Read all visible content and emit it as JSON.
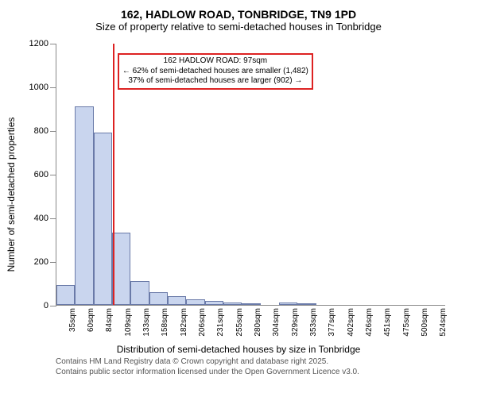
{
  "chart": {
    "type": "bar",
    "title_line1": "162, HADLOW ROAD, TONBRIDGE, TN9 1PD",
    "title_line2": "Size of property relative to semi-detached houses in Tonbridge",
    "y_label": "Number of semi-detached properties",
    "x_label": "Distribution of semi-detached houses by size in Tonbridge",
    "ylim": [
      0,
      1200
    ],
    "ytick_step": 200,
    "bar_fill": "#c9d5ee",
    "bar_border": "#6a7aa8",
    "background": "#ffffff",
    "marker_color": "#d22",
    "marker_x_sqm": 97,
    "callout": {
      "line1": "162 HADLOW ROAD: 97sqm",
      "line2": "← 62% of semi-detached houses are smaller (1,482)",
      "line3": "37% of semi-detached houses are larger (902) →"
    },
    "x_min": 35,
    "x_max": 524,
    "bars": [
      {
        "x": 35,
        "label": "35sqm",
        "value": 90
      },
      {
        "x": 60,
        "label": "60sqm",
        "value": 910
      },
      {
        "x": 84,
        "label": "84sqm",
        "value": 790
      },
      {
        "x": 109,
        "label": "109sqm",
        "value": 330
      },
      {
        "x": 133,
        "label": "133sqm",
        "value": 110
      },
      {
        "x": 158,
        "label": "158sqm",
        "value": 60
      },
      {
        "x": 182,
        "label": "182sqm",
        "value": 40
      },
      {
        "x": 206,
        "label": "206sqm",
        "value": 25
      },
      {
        "x": 231,
        "label": "231sqm",
        "value": 20
      },
      {
        "x": 255,
        "label": "255sqm",
        "value": 10
      },
      {
        "x": 280,
        "label": "280sqm",
        "value": 8
      },
      {
        "x": 304,
        "label": "304sqm",
        "value": 0
      },
      {
        "x": 329,
        "label": "329sqm",
        "value": 10
      },
      {
        "x": 353,
        "label": "353sqm",
        "value": 5
      },
      {
        "x": 377,
        "label": "377sqm",
        "value": 0
      },
      {
        "x": 402,
        "label": "402sqm",
        "value": 0
      },
      {
        "x": 426,
        "label": "426sqm",
        "value": 0
      },
      {
        "x": 451,
        "label": "451sqm",
        "value": 0
      },
      {
        "x": 475,
        "label": "475sqm",
        "value": 0
      },
      {
        "x": 500,
        "label": "500sqm",
        "value": 0
      },
      {
        "x": 524,
        "label": "524sqm",
        "value": 0
      }
    ],
    "footer_line1": "Contains HM Land Registry data © Crown copyright and database right 2025.",
    "footer_line2": "Contains public sector information licensed under the Open Government Licence v3.0."
  }
}
